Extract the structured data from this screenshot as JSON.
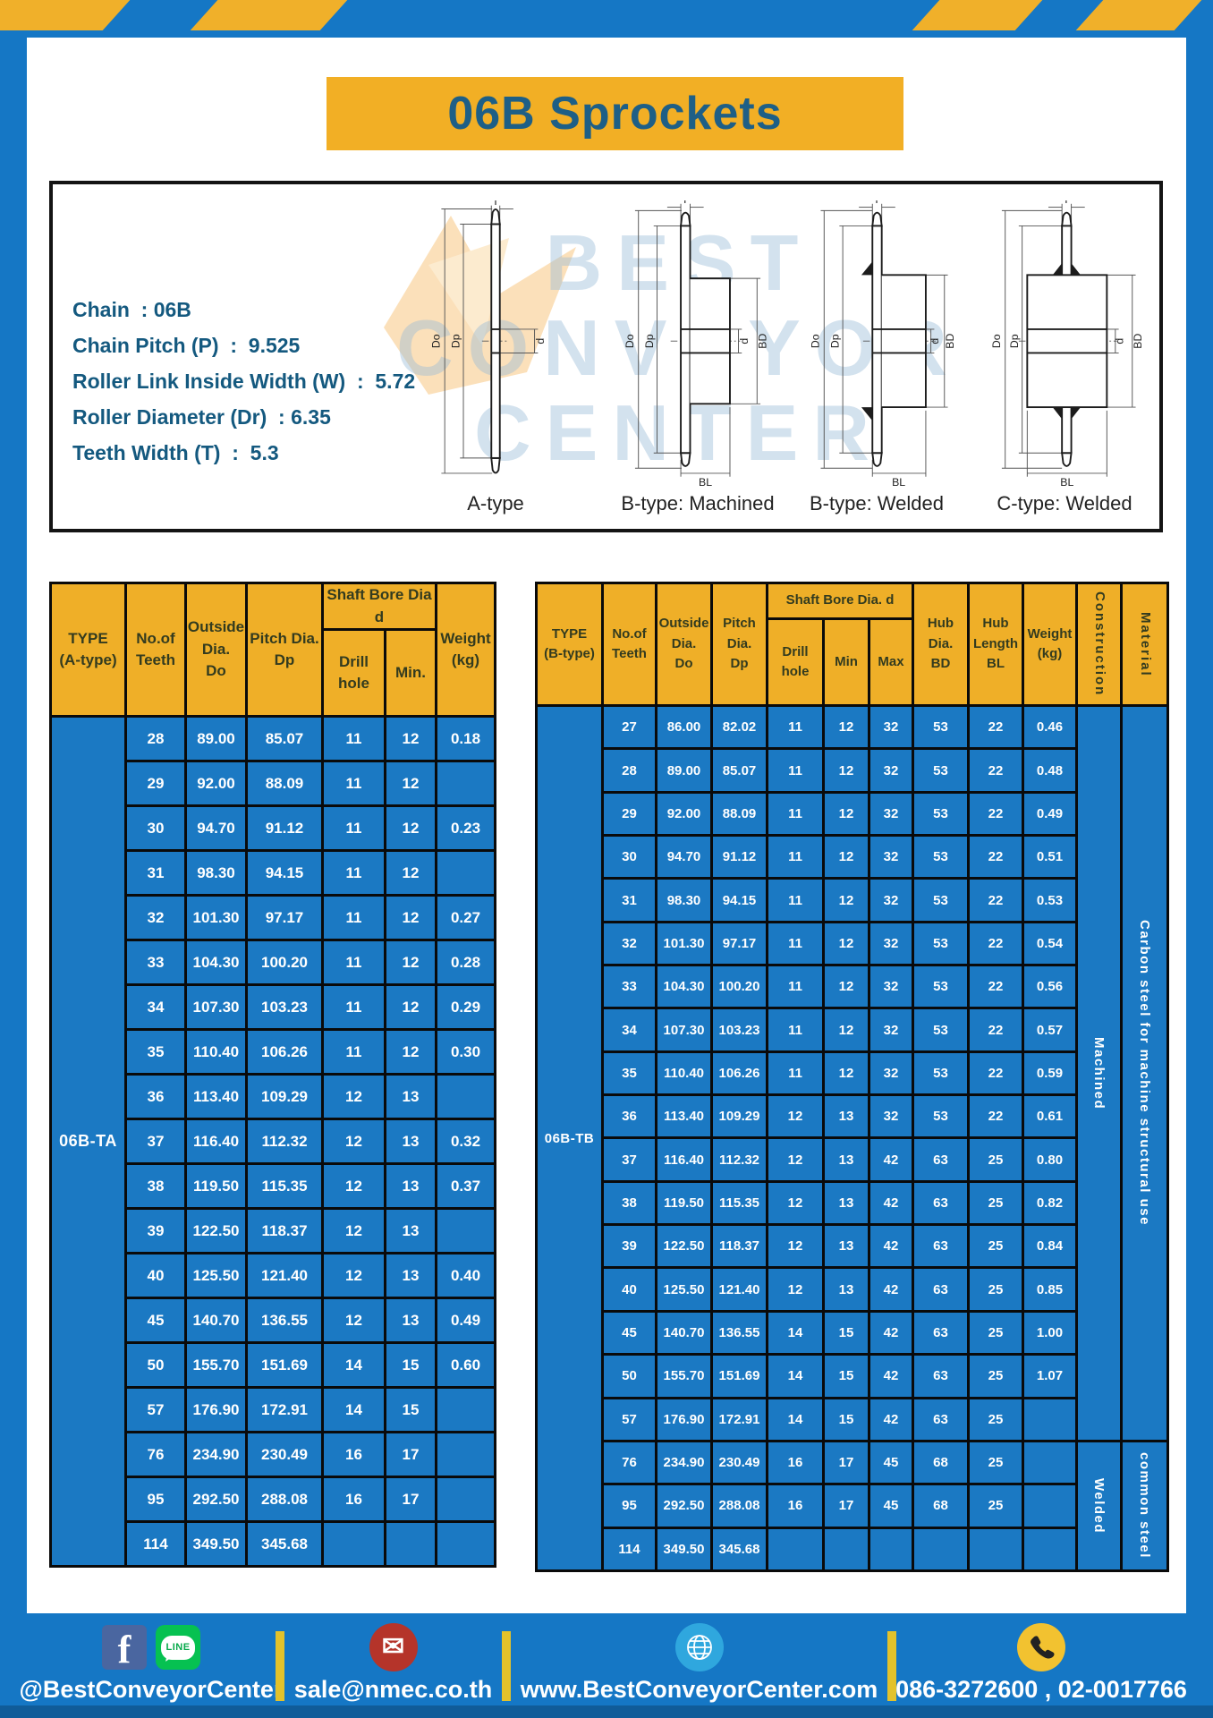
{
  "page": {
    "title": "06B Sprockets",
    "watermark": [
      "BEST",
      "CONVEYOR",
      "CENTER"
    ]
  },
  "colors": {
    "blue": "#1577C5",
    "yellow": "#F0B02A",
    "banner_yellow": "#F2AF25",
    "title_text": "#1E5F86",
    "header_text": "#333B1F",
    "cell_blue": "#1B79C3"
  },
  "specs": {
    "lines": [
      "Chain  : 06B",
      "Chain Pitch (P)  :  9.525",
      "Roller Link Inside Width (W)  :  5.72",
      "Roller Diameter (Dr)  : 6.35",
      "Teeth Width (T)  :  5.3"
    ]
  },
  "diagrams": {
    "dims": {
      "t": "T",
      "outside": "Do",
      "pitch": "Dp",
      "bore": "d",
      "hub_dia": "BD",
      "hub_len": "BL"
    },
    "items": [
      {
        "label": "A-type"
      },
      {
        "label": "B-type: Machined"
      },
      {
        "label": "B-type: Welded"
      },
      {
        "label": "C-type: Welded"
      }
    ]
  },
  "table_a": {
    "type_label": "06B-TA",
    "header": {
      "type": "TYPE\n(A-type)",
      "teeth": "No.of\nTeeth",
      "outside": "Outside\nDia.\nDo",
      "pitch": "Pitch Dia.\nDp",
      "shaft_bore": "Shaft Bore Dia d",
      "drill": "Drill hole",
      "min": "Min.",
      "weight": "Weight\n(kg)"
    },
    "rows": [
      [
        "28",
        "89.00",
        "85.07",
        "11",
        "12",
        "0.18"
      ],
      [
        "29",
        "92.00",
        "88.09",
        "11",
        "12",
        ""
      ],
      [
        "30",
        "94.70",
        "91.12",
        "11",
        "12",
        "0.23"
      ],
      [
        "31",
        "98.30",
        "94.15",
        "11",
        "12",
        ""
      ],
      [
        "32",
        "101.30",
        "97.17",
        "11",
        "12",
        "0.27"
      ],
      [
        "33",
        "104.30",
        "100.20",
        "11",
        "12",
        "0.28"
      ],
      [
        "34",
        "107.30",
        "103.23",
        "11",
        "12",
        "0.29"
      ],
      [
        "35",
        "110.40",
        "106.26",
        "11",
        "12",
        "0.30"
      ],
      [
        "36",
        "113.40",
        "109.29",
        "12",
        "13",
        ""
      ],
      [
        "37",
        "116.40",
        "112.32",
        "12",
        "13",
        "0.32"
      ],
      [
        "38",
        "119.50",
        "115.35",
        "12",
        "13",
        "0.37"
      ],
      [
        "39",
        "122.50",
        "118.37",
        "12",
        "13",
        ""
      ],
      [
        "40",
        "125.50",
        "121.40",
        "12",
        "13",
        "0.40"
      ],
      [
        "45",
        "140.70",
        "136.55",
        "12",
        "13",
        "0.49"
      ],
      [
        "50",
        "155.70",
        "151.69",
        "14",
        "15",
        "0.60"
      ],
      [
        "57",
        "176.90",
        "172.91",
        "14",
        "15",
        ""
      ],
      [
        "76",
        "234.90",
        "230.49",
        "16",
        "17",
        ""
      ],
      [
        "95",
        "292.50",
        "288.08",
        "16",
        "17",
        ""
      ],
      [
        "114",
        "349.50",
        "345.68",
        "",
        "",
        ""
      ]
    ]
  },
  "table_b": {
    "type_label": "06B-TB",
    "header": {
      "type": "TYPE\n(B-type)",
      "teeth": "No.of\nTeeth",
      "outside": "Outside\nDia.\nDo",
      "pitch": "Pitch\nDia.\nDp",
      "shaft_bore": "Shaft Bore Dia. d",
      "drill": "Drill hole",
      "min": "Min",
      "max": "Max",
      "hub_dia": "Hub\nDia.\nBD",
      "hub_len": "Hub\nLength\nBL",
      "weight": "Weight\n(kg)",
      "construction": "Construction",
      "material": "Material"
    },
    "rows": [
      [
        "27",
        "86.00",
        "82.02",
        "11",
        "12",
        "32",
        "53",
        "22",
        "0.46"
      ],
      [
        "28",
        "89.00",
        "85.07",
        "11",
        "12",
        "32",
        "53",
        "22",
        "0.48"
      ],
      [
        "29",
        "92.00",
        "88.09",
        "11",
        "12",
        "32",
        "53",
        "22",
        "0.49"
      ],
      [
        "30",
        "94.70",
        "91.12",
        "11",
        "12",
        "32",
        "53",
        "22",
        "0.51"
      ],
      [
        "31",
        "98.30",
        "94.15",
        "11",
        "12",
        "32",
        "53",
        "22",
        "0.53"
      ],
      [
        "32",
        "101.30",
        "97.17",
        "11",
        "12",
        "32",
        "53",
        "22",
        "0.54"
      ],
      [
        "33",
        "104.30",
        "100.20",
        "11",
        "12",
        "32",
        "53",
        "22",
        "0.56"
      ],
      [
        "34",
        "107.30",
        "103.23",
        "11",
        "12",
        "32",
        "53",
        "22",
        "0.57"
      ],
      [
        "35",
        "110.40",
        "106.26",
        "11",
        "12",
        "32",
        "53",
        "22",
        "0.59"
      ],
      [
        "36",
        "113.40",
        "109.29",
        "12",
        "13",
        "32",
        "53",
        "22",
        "0.61"
      ],
      [
        "37",
        "116.40",
        "112.32",
        "12",
        "13",
        "42",
        "63",
        "25",
        "0.80"
      ],
      [
        "38",
        "119.50",
        "115.35",
        "12",
        "13",
        "42",
        "63",
        "25",
        "0.82"
      ],
      [
        "39",
        "122.50",
        "118.37",
        "12",
        "13",
        "42",
        "63",
        "25",
        "0.84"
      ],
      [
        "40",
        "125.50",
        "121.40",
        "12",
        "13",
        "42",
        "63",
        "25",
        "0.85"
      ],
      [
        "45",
        "140.70",
        "136.55",
        "14",
        "15",
        "42",
        "63",
        "25",
        "1.00"
      ],
      [
        "50",
        "155.70",
        "151.69",
        "14",
        "15",
        "42",
        "63",
        "25",
        "1.07"
      ],
      [
        "57",
        "176.90",
        "172.91",
        "14",
        "15",
        "42",
        "63",
        "25",
        ""
      ],
      [
        "76",
        "234.90",
        "230.49",
        "16",
        "17",
        "45",
        "68",
        "25",
        ""
      ],
      [
        "95",
        "292.50",
        "288.08",
        "16",
        "17",
        "45",
        "68",
        "25",
        ""
      ],
      [
        "114",
        "349.50",
        "345.68",
        "",
        "",
        "",
        "",
        "",
        ""
      ]
    ],
    "construction": [
      {
        "label": "Machined",
        "span": 17
      },
      {
        "label": "Welded",
        "span": 3
      }
    ],
    "material": [
      {
        "label": "Carbon steel for machine structural use",
        "span": 17
      },
      {
        "label": "common steel",
        "span": 3
      }
    ]
  },
  "footer": {
    "line_badge": "LINE",
    "items": [
      {
        "icons": [
          "facebook-icon",
          "line-icon"
        ],
        "text": "@BestConveyorCenter"
      },
      {
        "icons": [
          "email-icon"
        ],
        "text": "sale@nmec.co.th"
      },
      {
        "icons": [
          "globe-icon"
        ],
        "text": "www.BestConveyorCenter.com"
      },
      {
        "icons": [
          "phone-icon"
        ],
        "text": "086-3272600 , 02-0017766"
      }
    ]
  }
}
